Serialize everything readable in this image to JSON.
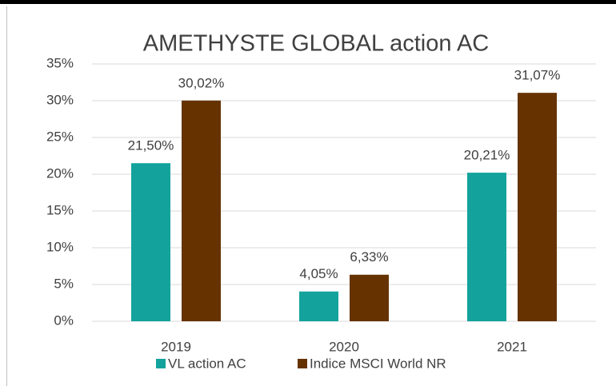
{
  "chart_data": {
    "type": "bar",
    "title": "AMETHYSTE GLOBAL action AC",
    "categories": [
      "2019",
      "2020",
      "2021"
    ],
    "series": [
      {
        "name": "VL action AC",
        "color": "#14a39c",
        "values": [
          21.5,
          4.05,
          20.21
        ],
        "value_labels": [
          "21,50%",
          "4,05%",
          "20,21%"
        ]
      },
      {
        "name": "Indice MSCI World NR",
        "color": "#663300",
        "values": [
          30.02,
          6.33,
          31.07
        ],
        "value_labels": [
          "30,02%",
          "6,33%",
          "31,07%"
        ]
      }
    ],
    "ylim": [
      0,
      35
    ],
    "yticks": [
      {
        "value": 0,
        "label": "0%"
      },
      {
        "value": 5,
        "label": "5%"
      },
      {
        "value": 10,
        "label": "10%"
      },
      {
        "value": 15,
        "label": "15%"
      },
      {
        "value": 20,
        "label": "20%"
      },
      {
        "value": 25,
        "label": "25%"
      },
      {
        "value": 30,
        "label": "30%"
      },
      {
        "value": 35,
        "label": "35%"
      }
    ],
    "grid": true,
    "legend": "bottom"
  }
}
